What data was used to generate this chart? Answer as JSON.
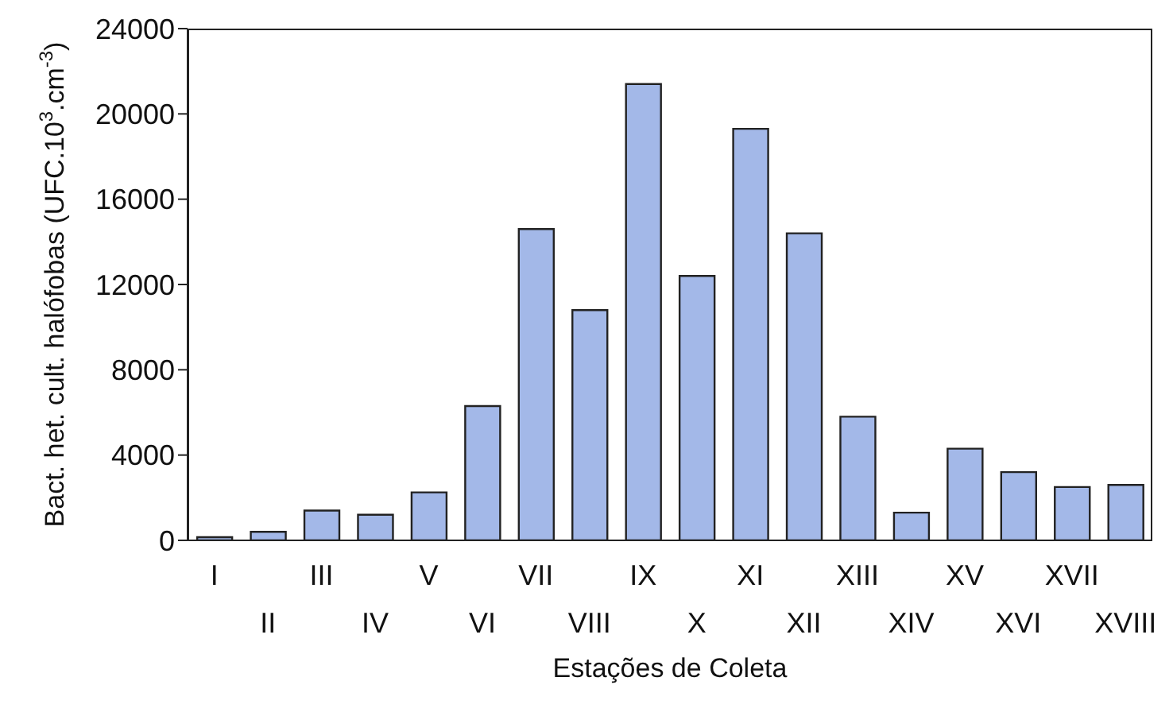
{
  "chart_data": {
    "type": "bar",
    "xlabel": "Estações de Coleta",
    "ylabel": "Bact. het. cult. halófobas (UFC.10$^{3}$.cm$^{-3}$)",
    "categories": [
      "I",
      "II",
      "III",
      "IV",
      "V",
      "VI",
      "VII",
      "VIII",
      "IX",
      "X",
      "XI",
      "XII",
      "XIII",
      "XIV",
      "XV",
      "XVI",
      "XVII",
      "XVIII"
    ],
    "values": [
      150,
      400,
      1400,
      1200,
      2250,
      6300,
      14600,
      10800,
      21400,
      12400,
      19300,
      14400,
      5800,
      1300,
      4300,
      3200,
      2500,
      2600
    ],
    "color": "#a3b8e8",
    "ylim": [
      0,
      24000
    ],
    "yticks": [
      0,
      4000,
      8000,
      12000,
      16000,
      20000,
      24000
    ],
    "grid": false
  }
}
